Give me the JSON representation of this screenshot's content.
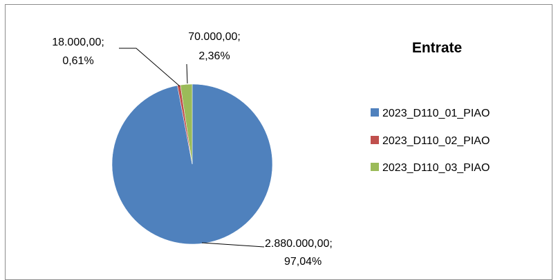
{
  "chart_data": {
    "type": "pie",
    "title": "Entrate",
    "legend_position": "right",
    "slices": [
      {
        "name": "2023_D110_01_PIAO",
        "value": 2880000,
        "percent": 97.04,
        "label_value": "2.880.000,00;",
        "label_percent": "97,04%",
        "color": "#4f81bd"
      },
      {
        "name": "2023_D110_02_PIAO",
        "value": 18000,
        "percent": 0.61,
        "label_value": "18.000,00;",
        "label_percent": "0,61%",
        "color": "#c0504d"
      },
      {
        "name": "2023_D110_03_PIAO",
        "value": 70000,
        "percent": 2.36,
        "label_value": "70.000,00;",
        "label_percent": "2,36%",
        "color": "#9bbb59"
      }
    ]
  }
}
